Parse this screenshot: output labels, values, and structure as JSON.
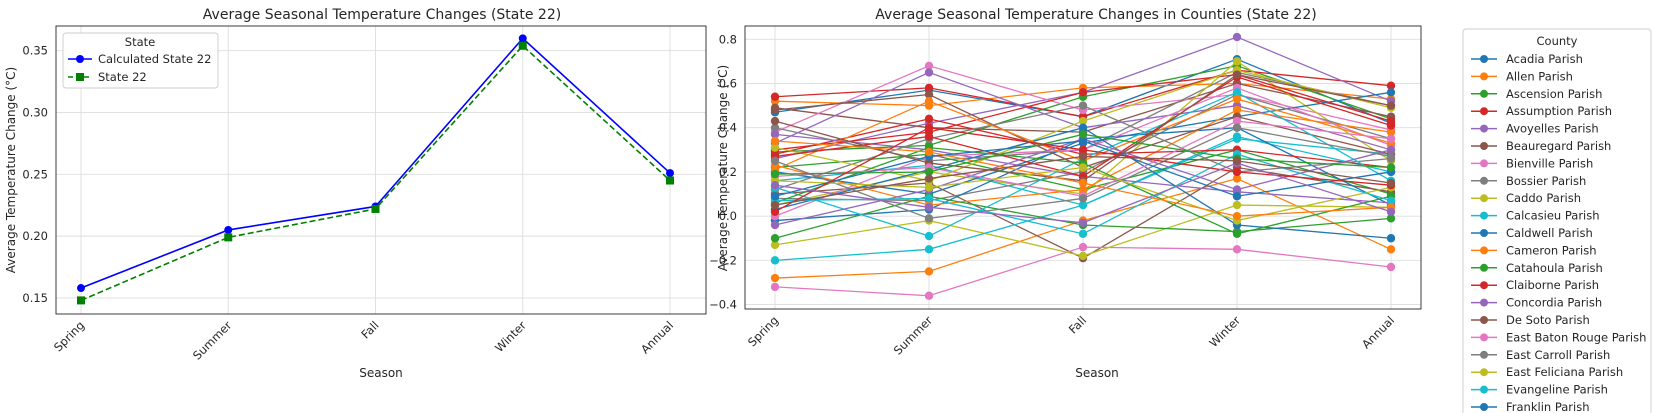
{
  "chart_data": [
    {
      "type": "line",
      "title": "Average Seasonal Temperature Changes (State 22)",
      "xlabel": "Season",
      "ylabel": "Average Temperature Change (°C)",
      "categories": [
        "Spring",
        "Summer",
        "Fall",
        "Winter",
        "Annual"
      ],
      "ylim": [
        0.137,
        0.37
      ],
      "yticks": [
        0.15,
        0.2,
        0.25,
        0.3,
        0.35
      ],
      "ytick_labels": [
        "0.15",
        "0.20",
        "0.25",
        "0.30",
        "0.35"
      ],
      "grid": true,
      "legend": {
        "title": "State",
        "position": "upper-left"
      },
      "series": [
        {
          "name": "Calculated State 22",
          "color": "#0000ff",
          "marker": "circle",
          "dash": "solid",
          "values": [
            0.158,
            0.205,
            0.224,
            0.36,
            0.251
          ]
        },
        {
          "name": "State 22",
          "color": "#008000",
          "marker": "square",
          "dash": "dashed",
          "values": [
            0.148,
            0.199,
            0.222,
            0.354,
            0.245
          ]
        }
      ]
    },
    {
      "type": "line",
      "title": "Average Seasonal Temperature Changes in Counties (State 22)",
      "xlabel": "Season",
      "ylabel": "Average Temperature Change (°C)",
      "categories": [
        "Spring",
        "Summer",
        "Fall",
        "Winter",
        "Annual"
      ],
      "ylim": [
        -0.42,
        0.86
      ],
      "yticks": [
        -0.4,
        -0.2,
        0.0,
        0.2,
        0.4,
        0.6,
        0.8
      ],
      "ytick_labels": [
        "−0.4",
        "−0.2",
        "0.0",
        "0.2",
        "0.4",
        "0.6",
        "0.8"
      ],
      "grid": true,
      "legend": {
        "title": "County",
        "position": "outside-right"
      },
      "series": [
        {
          "name": "Acadia Parish",
          "color": "#1f77b4",
          "values": [
            0.47,
            0.57,
            0.45,
            0.71,
            0.42
          ]
        },
        {
          "name": "Allen Parish",
          "color": "#ff7f0e",
          "values": [
            0.52,
            0.5,
            0.58,
            0.6,
            0.53
          ]
        },
        {
          "name": "Ascension Parish",
          "color": "#2ca02c",
          "values": [
            0.29,
            0.32,
            0.54,
            0.68,
            0.44
          ]
        },
        {
          "name": "Assumption Parish",
          "color": "#d62728",
          "values": [
            0.54,
            0.58,
            0.45,
            0.66,
            0.59
          ]
        },
        {
          "name": "Avoyelles Parish",
          "color": "#9467bd",
          "values": [
            0.26,
            0.42,
            0.56,
            0.81,
            0.52
          ]
        },
        {
          "name": "Beauregard Parish",
          "color": "#8c564b",
          "values": [
            0.49,
            0.4,
            0.38,
            0.6,
            0.45
          ]
        },
        {
          "name": "Bienville Parish",
          "color": "#e377c2",
          "values": [
            0.38,
            0.68,
            0.48,
            0.55,
            0.39
          ]
        },
        {
          "name": "Bossier Parish",
          "color": "#7f7f7f",
          "values": [
            0.4,
            0.25,
            0.3,
            0.65,
            0.5
          ]
        },
        {
          "name": "Caddo Parish",
          "color": "#bcbd22",
          "values": [
            0.05,
            0.2,
            0.1,
            0.7,
            0.25
          ]
        },
        {
          "name": "Calcasieu Parish",
          "color": "#17becf",
          "values": [
            0.16,
            0.23,
            0.05,
            0.36,
            0.2
          ]
        },
        {
          "name": "Caldwell Parish",
          "color": "#1f77b4",
          "values": [
            0.2,
            0.1,
            0.33,
            0.45,
            0.56
          ]
        },
        {
          "name": "Cameron Parish",
          "color": "#ff7f0e",
          "values": [
            -0.28,
            -0.25,
            -0.02,
            0.17,
            -0.15
          ]
        },
        {
          "name": "Catahoula Parish",
          "color": "#2ca02c",
          "values": [
            0.22,
            0.28,
            0.12,
            0.3,
            0.1
          ]
        },
        {
          "name": "Claiborne Parish",
          "color": "#d62728",
          "values": [
            0.3,
            0.38,
            0.56,
            0.64,
            0.43
          ]
        },
        {
          "name": "Concordia Parish",
          "color": "#9467bd",
          "values": [
            0.33,
            0.65,
            0.4,
            0.5,
            0.3
          ]
        },
        {
          "name": "De Soto Parish",
          "color": "#8c564b",
          "values": [
            0.1,
            0.15,
            -0.19,
            0.22,
            0.11
          ]
        },
        {
          "name": "East Baton Rouge Parish",
          "color": "#e377c2",
          "values": [
            -0.32,
            -0.36,
            -0.14,
            -0.15,
            -0.23
          ]
        },
        {
          "name": "East Carroll Parish",
          "color": "#7f7f7f",
          "values": [
            0.08,
            0.07,
            0.2,
            0.55,
            0.35
          ]
        },
        {
          "name": "East Feliciana Parish",
          "color": "#bcbd22",
          "values": [
            -0.13,
            -0.02,
            -0.18,
            0.05,
            0.04
          ]
        },
        {
          "name": "Evangeline Parish",
          "color": "#17becf",
          "values": [
            -0.2,
            -0.15,
            0.05,
            0.35,
            0.28
          ]
        },
        {
          "name": "Franklin Parish",
          "color": "#1f77b4",
          "values": [
            -0.02,
            0.03,
            0.35,
            0.4,
            0.05
          ]
        },
        {
          "name": "",
          "color": "#ff7f0e",
          "values": [
            0.23,
            0.05,
            0.12,
            0.48,
            0.38
          ]
        },
        {
          "name": "",
          "color": "#2ca02c",
          "values": [
            -0.1,
            0.09,
            -0.04,
            -0.07,
            -0.01
          ]
        },
        {
          "name": "",
          "color": "#d62728",
          "values": [
            0.28,
            0.44,
            0.28,
            0.3,
            0.22
          ]
        },
        {
          "name": "",
          "color": "#9467bd",
          "values": [
            0.37,
            0.3,
            0.18,
            0.11,
            0.06
          ]
        },
        {
          "name": "",
          "color": "#8c564b",
          "values": [
            0.48,
            0.55,
            0.22,
            0.45,
            0.28
          ]
        },
        {
          "name": "",
          "color": "#e377c2",
          "values": [
            0.0,
            0.27,
            0.3,
            0.58,
            0.32
          ]
        },
        {
          "name": "",
          "color": "#7f7f7f",
          "values": [
            0.12,
            0.35,
            0.5,
            0.2,
            0.26
          ]
        },
        {
          "name": "",
          "color": "#bcbd22",
          "values": [
            0.31,
            0.16,
            0.43,
            0.66,
            0.49
          ]
        },
        {
          "name": "",
          "color": "#17becf",
          "values": [
            0.13,
            -0.09,
            0.26,
            0.56,
            0.16
          ]
        },
        {
          "name": "",
          "color": "#1f77b4",
          "values": [
            0.03,
            0.21,
            0.4,
            -0.04,
            -0.1
          ]
        },
        {
          "name": "",
          "color": "#ff7f0e",
          "values": [
            0.21,
            0.52,
            0.25,
            0.53,
            0.33
          ]
        },
        {
          "name": "",
          "color": "#2ca02c",
          "values": [
            0.06,
            0.31,
            0.24,
            -0.08,
            0.09
          ]
        },
        {
          "name": "",
          "color": "#d62728",
          "values": [
            0.27,
            0.36,
            0.18,
            0.63,
            0.41
          ]
        },
        {
          "name": "",
          "color": "#9467bd",
          "values": [
            -0.04,
            0.12,
            0.35,
            0.12,
            0.3
          ]
        },
        {
          "name": "",
          "color": "#8c564b",
          "values": [
            0.43,
            0.24,
            0.16,
            0.64,
            0.5
          ]
        },
        {
          "name": "",
          "color": "#e377c2",
          "values": [
            0.18,
            0.22,
            0.09,
            0.43,
            0.35
          ]
        },
        {
          "name": "",
          "color": "#7f7f7f",
          "values": [
            0.25,
            -0.01,
            0.08,
            0.4,
            0.27
          ]
        },
        {
          "name": "",
          "color": "#bcbd22",
          "values": [
            0.16,
            0.13,
            0.22,
            -0.02,
            0.13
          ]
        },
        {
          "name": "",
          "color": "#17becf",
          "values": [
            0.07,
            0.08,
            -0.08,
            0.28,
            0.07
          ]
        },
        {
          "name": "",
          "color": "#1f77b4",
          "values": [
            0.09,
            0.27,
            0.34,
            0.09,
            0.2
          ]
        },
        {
          "name": "",
          "color": "#ff7f0e",
          "values": [
            0.34,
            0.29,
            0.15,
            0.0,
            0.04
          ]
        },
        {
          "name": "",
          "color": "#2ca02c",
          "values": [
            0.19,
            0.2,
            0.37,
            0.26,
            0.22
          ]
        },
        {
          "name": "",
          "color": "#d62728",
          "values": [
            0.02,
            0.4,
            0.3,
            0.2,
            0.14
          ]
        },
        {
          "name": "",
          "color": "#9467bd",
          "values": [
            0.14,
            0.04,
            -0.03,
            0.24,
            0.02
          ]
        },
        {
          "name": "",
          "color": "#8c564b",
          "values": [
            0.05,
            0.17,
            0.27,
            0.25,
            0.15
          ]
        }
      ]
    }
  ]
}
